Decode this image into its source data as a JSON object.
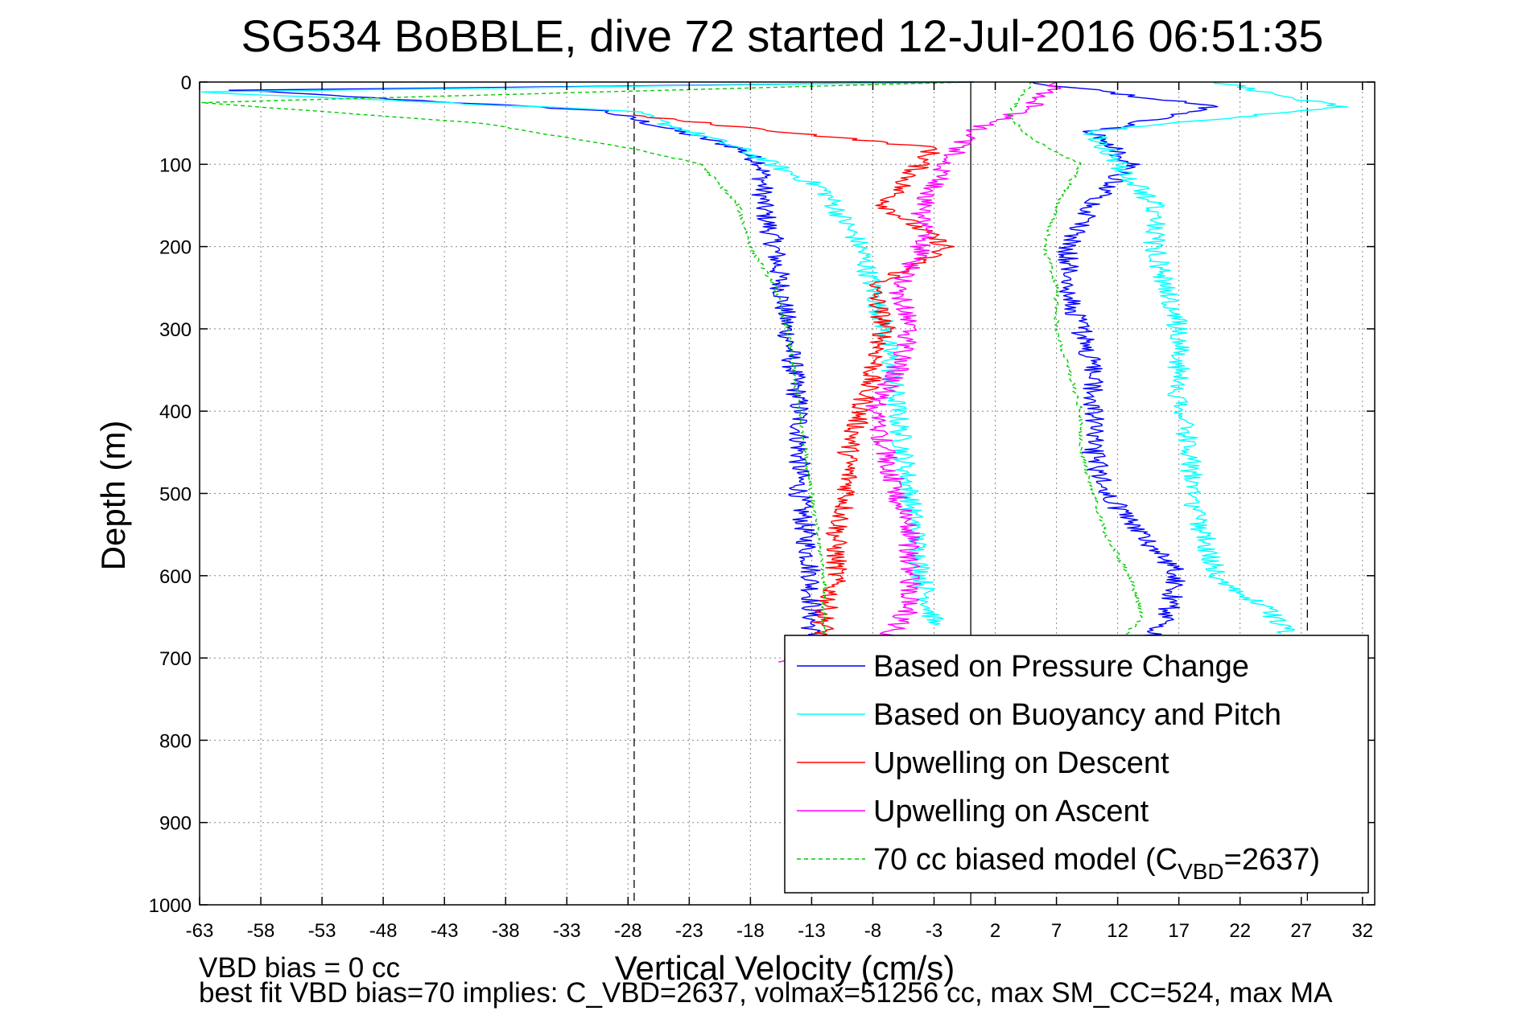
{
  "chart_data": {
    "type": "line",
    "title": "SG534 BoBBLE, dive 72 started 12-Jul-2016 06:51:35",
    "xlabel": "Vertical Velocity (cm/s)",
    "ylabel": "Depth (m)",
    "xlim": [
      -63,
      33
    ],
    "ylim": [
      0,
      1000
    ],
    "y_reversed": true,
    "x_ticks": [
      "-63",
      "-58",
      "-53",
      "-48",
      "-43",
      "-38",
      "-33",
      "-28",
      "-23",
      "-18",
      "-13",
      "-8",
      "-3",
      "2",
      "7",
      "12",
      "17",
      "22",
      "27",
      "32"
    ],
    "y_ticks": [
      "0",
      "100",
      "200",
      "300",
      "400",
      "500",
      "600",
      "700",
      "800",
      "900",
      "1000"
    ],
    "grid": true,
    "legend_position": "bottom-right",
    "reference_lines": [
      {
        "x": -27.5,
        "style": "dashed"
      },
      {
        "x": 0,
        "style": "solid"
      },
      {
        "x": 27.5,
        "style": "dashed"
      }
    ],
    "series": [
      {
        "name": "Based on Pressure Change",
        "color": "#0000ff",
        "style": "solid",
        "descent": [
          [
            0,
            0
          ],
          [
            -60,
            10
          ],
          [
            -30,
            35
          ],
          [
            -19,
            80
          ],
          [
            -17,
            100
          ],
          [
            -17,
            150
          ],
          [
            -16,
            200
          ],
          [
            -15,
            300
          ],
          [
            -14,
            400
          ],
          [
            -14,
            500
          ],
          [
            -13,
            600
          ],
          [
            -13,
            700
          ]
        ],
        "ascent": [
          [
            13,
            700
          ],
          [
            16,
            650
          ],
          [
            17,
            600
          ],
          [
            14,
            550
          ],
          [
            11,
            500
          ],
          [
            10,
            450
          ],
          [
            10,
            400
          ],
          [
            10,
            350
          ],
          [
            9,
            300
          ],
          [
            8,
            250
          ],
          [
            8,
            200
          ],
          [
            10,
            150
          ],
          [
            13,
            100
          ],
          [
            10,
            60
          ],
          [
            20,
            30
          ],
          [
            5,
            0
          ]
        ]
      },
      {
        "name": "Based on Buoyancy and Pitch",
        "color": "#00ffff",
        "style": "solid",
        "descent": [
          [
            -1,
            0
          ],
          [
            -63,
            12
          ],
          [
            -28,
            35
          ],
          [
            -19,
            80
          ],
          [
            -12,
            130
          ],
          [
            -9,
            200
          ],
          [
            -7,
            300
          ],
          [
            -6,
            400
          ],
          [
            -5,
            500
          ],
          [
            -4,
            600
          ],
          [
            -3,
            660
          ]
        ],
        "ascent": [
          [
            26,
            670
          ],
          [
            24,
            640
          ],
          [
            20,
            600
          ],
          [
            19,
            550
          ],
          [
            18,
            500
          ],
          [
            18,
            450
          ],
          [
            17,
            400
          ],
          [
            17,
            350
          ],
          [
            17,
            300
          ],
          [
            16,
            250
          ],
          [
            15,
            200
          ],
          [
            15,
            150
          ],
          [
            12,
            100
          ],
          [
            10,
            60
          ],
          [
            30,
            30
          ],
          [
            20,
            0
          ]
        ]
      },
      {
        "name": "Upwelling on Descent",
        "color": "#ff0000",
        "style": "solid",
        "descent": [
          [
            -28,
            40
          ],
          [
            -3,
            80
          ],
          [
            -7,
            150
          ],
          [
            -2,
            200
          ],
          [
            -8,
            250
          ],
          [
            -7,
            300
          ],
          [
            -8,
            350
          ],
          [
            -9,
            400
          ],
          [
            -10,
            450
          ],
          [
            -10,
            500
          ],
          [
            -11,
            550
          ],
          [
            -11,
            600
          ],
          [
            -12,
            650
          ],
          [
            -12,
            700
          ]
        ],
        "ascent": []
      },
      {
        "name": "Upwelling on Ascent",
        "color": "#ff00ff",
        "style": "solid",
        "descent": [],
        "ascent": [
          [
            -16,
            705
          ],
          [
            -7,
            680
          ],
          [
            -5,
            640
          ],
          [
            -5,
            600
          ],
          [
            -5,
            550
          ],
          [
            -6,
            500
          ],
          [
            -7,
            450
          ],
          [
            -8,
            400
          ],
          [
            -6,
            350
          ],
          [
            -5,
            300
          ],
          [
            -6,
            250
          ],
          [
            -4,
            200
          ],
          [
            -4,
            150
          ],
          [
            -2,
            100
          ],
          [
            0,
            60
          ],
          [
            5,
            30
          ],
          [
            7,
            0
          ]
        ]
      },
      {
        "name": "70 cc biased model (C",
        "name_sub": "VBD",
        "name_tail": "=2637)",
        "color": "#00cc00",
        "style": "dashed",
        "descent": [
          [
            0,
            0
          ],
          [
            -63,
            25
          ],
          [
            -40,
            50
          ],
          [
            -28,
            80
          ],
          [
            -22,
            100
          ],
          [
            -19,
            150
          ],
          [
            -18,
            200
          ],
          [
            -16,
            250
          ],
          [
            -15,
            300
          ],
          [
            -14,
            400
          ],
          [
            -13,
            500
          ],
          [
            -12,
            600
          ],
          [
            -12,
            700
          ]
        ],
        "ascent": [
          [
            11,
            700
          ],
          [
            14,
            650
          ],
          [
            13,
            600
          ],
          [
            11,
            550
          ],
          [
            10,
            500
          ],
          [
            9,
            450
          ],
          [
            9,
            400
          ],
          [
            8,
            350
          ],
          [
            7,
            300
          ],
          [
            7,
            250
          ],
          [
            6,
            200
          ],
          [
            7,
            150
          ],
          [
            9,
            100
          ],
          [
            5,
            70
          ],
          [
            3,
            40
          ],
          [
            5,
            0
          ]
        ]
      }
    ]
  },
  "footnotes": {
    "line1": "VBD bias = 0 cc",
    "line2": "best fit VBD bias=70 implies: C_VBD=2637, volmax=51256 cc, max SM_CC=524, max MA"
  }
}
